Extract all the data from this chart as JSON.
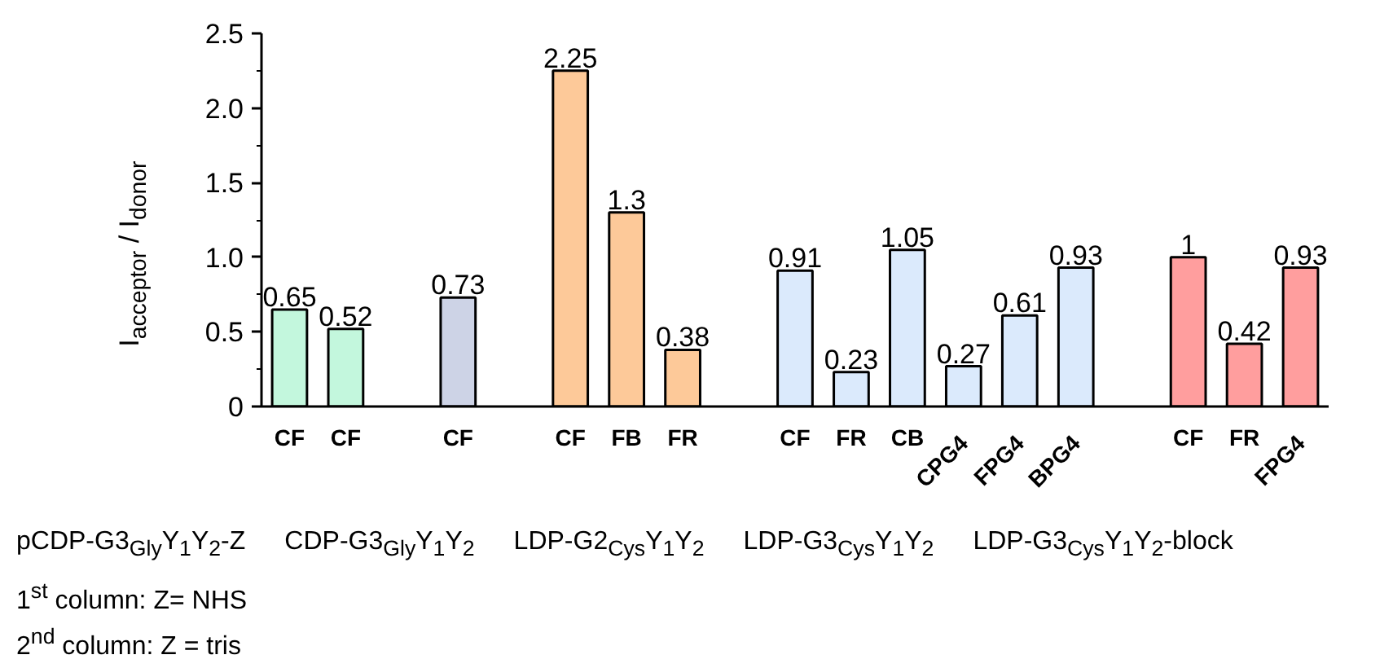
{
  "chart_data": {
    "type": "bar",
    "ylabel": "I$_{acceptor}$ / I$_{donor}$",
    "categories": [
      "CF",
      "CF",
      null,
      "CF",
      null,
      "CF",
      "FB",
      "FR",
      null,
      "CF",
      "FR",
      "CB",
      "CPG4",
      "FPG4",
      "BPG4",
      null,
      "CF",
      "FR",
      "FPG4"
    ],
    "values": [
      0.65,
      0.52,
      null,
      0.73,
      null,
      2.25,
      1.3,
      0.38,
      null,
      0.91,
      0.23,
      1.05,
      0.27,
      0.61,
      0.93,
      null,
      1,
      0.42,
      0.93
    ],
    "colors": [
      "#c3f7dd",
      "#c3f7dd",
      null,
      "#cdd3e6",
      null,
      "#fdc999",
      "#fdc999",
      "#fdc999",
      null,
      "#dbeafc",
      "#dbeafc",
      "#dbeafc",
      "#dbeafc",
      "#dbeafc",
      "#dbeafc",
      null,
      "#ff9e9e",
      "#ff9e9e",
      "#ff9e9e"
    ],
    "ylim": [
      0,
      2.5
    ],
    "yticks": [
      0,
      0.5,
      {
        "value": 1,
        "label": "1.0"
      },
      {
        "value": 1.5,
        "label": "1.5"
      },
      {
        "value": 2,
        "label": "2.0"
      },
      {
        "value": 2.5,
        "label": "2.5"
      }
    ],
    "data_labels": true,
    "grid": false,
    "annotations": [
      "pCDP-G3$_{Gly}$Y$_{1}$Y$_{2}$-Z",
      "CDP-G3$_{Gly}$Y$_{1}$Y$_{2}$",
      "LDP-G2$_{Cys}$Y$_{1}$Y$_{2}$",
      "LDP-G3$_{Cys}$Y$_{1}$Y$_{2}$",
      "LDP-G3$_{Cys}$Y$_{1}$Y$_{2}$-block",
      "1$^{st}$ column: Z= NHS",
      "2$^{nd}$ column: Z = tris"
    ]
  }
}
